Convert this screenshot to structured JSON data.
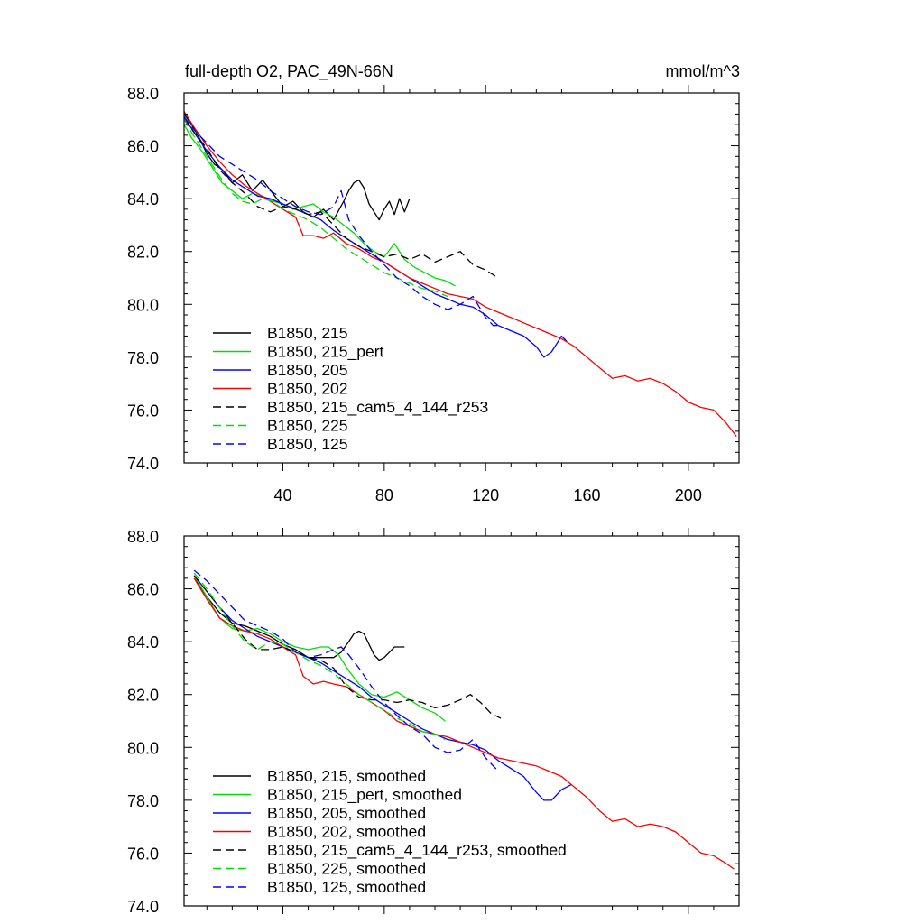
{
  "chart_data": [
    {
      "type": "line",
      "title": "full-depth O2, PAC_49N-66N",
      "units": "mmol/m^3",
      "xlabel": "",
      "ylabel": "",
      "xlim": [
        1,
        220
      ],
      "ylim": [
        74.0,
        88.0
      ],
      "xticks": [
        40,
        80,
        120,
        160,
        200
      ],
      "xtick_labels": [
        "40",
        "80",
        "120",
        "160",
        "200"
      ],
      "yticks": [
        74.0,
        76.0,
        78.0,
        80.0,
        82.0,
        84.0,
        86.0,
        88.0
      ],
      "ytick_labels": [
        "74.0",
        "76.0",
        "78.0",
        "80.0",
        "82.0",
        "84.0",
        "86.0",
        "88.0"
      ],
      "legend_position": "bottom-left",
      "grid": false,
      "series": [
        {
          "name": "B1850, 215",
          "color": "#000000",
          "dash": "solid",
          "x": [
            1,
            4,
            7,
            10,
            13,
            16,
            20,
            24,
            28,
            32,
            36,
            40,
            44,
            48,
            52,
            56,
            60,
            64,
            66,
            68,
            70,
            72,
            74,
            76,
            78,
            80,
            82,
            84,
            86,
            88,
            90
          ],
          "y": [
            87.2,
            86.8,
            86.3,
            85.7,
            85.3,
            85.1,
            84.6,
            84.9,
            84.3,
            84.7,
            84.2,
            83.7,
            83.9,
            83.5,
            83.3,
            83.6,
            83.2,
            83.9,
            84.3,
            84.6,
            84.7,
            84.4,
            83.8,
            83.5,
            83.2,
            83.6,
            83.9,
            83.4,
            84.0,
            83.5,
            84.0
          ]
        },
        {
          "name": "B1850, 215_pert",
          "color": "#00e000",
          "dash": "solid",
          "x": [
            1,
            4,
            8,
            12,
            16,
            20,
            24,
            28,
            32,
            36,
            40,
            44,
            48,
            52,
            56,
            60,
            64,
            68,
            72,
            76,
            80,
            84,
            88,
            92,
            96,
            100,
            104,
            108
          ],
          "y": [
            86.8,
            86.3,
            85.8,
            85.2,
            84.6,
            84.3,
            84.0,
            84.2,
            84.1,
            83.9,
            83.8,
            83.6,
            83.7,
            83.8,
            83.5,
            83.3,
            83.0,
            82.7,
            82.3,
            82.0,
            81.8,
            82.3,
            81.7,
            81.4,
            81.2,
            81.0,
            80.9,
            80.7
          ]
        },
        {
          "name": "B1850, 205",
          "color": "#0000ff",
          "dash": "solid",
          "x": [
            1,
            5,
            10,
            15,
            20,
            25,
            30,
            35,
            40,
            45,
            50,
            55,
            60,
            65,
            70,
            75,
            80,
            85,
            90,
            95,
            100,
            105,
            110,
            115,
            120,
            125,
            130,
            135,
            140,
            143,
            146,
            148,
            150,
            152
          ],
          "y": [
            87.1,
            86.5,
            85.8,
            85.2,
            84.7,
            84.4,
            84.1,
            84.0,
            83.8,
            83.6,
            83.4,
            83.2,
            82.8,
            82.5,
            82.2,
            81.9,
            81.6,
            81.3,
            81.0,
            80.7,
            80.4,
            80.2,
            80.0,
            79.9,
            79.6,
            79.2,
            79.0,
            78.8,
            78.4,
            78.0,
            78.2,
            78.5,
            78.8,
            78.6
          ]
        },
        {
          "name": "B1850, 202",
          "color": "#ff0000",
          "dash": "solid",
          "x": [
            1,
            5,
            10,
            15,
            20,
            25,
            30,
            35,
            40,
            45,
            48,
            52,
            56,
            60,
            65,
            70,
            75,
            80,
            85,
            90,
            95,
            100,
            105,
            110,
            115,
            120,
            125,
            130,
            135,
            140,
            145,
            150,
            155,
            160,
            165,
            170,
            175,
            180,
            185,
            190,
            195,
            200,
            205,
            210,
            215,
            219
          ],
          "y": [
            87.3,
            86.7,
            86.0,
            85.4,
            84.9,
            84.5,
            84.2,
            83.9,
            83.6,
            83.3,
            82.6,
            82.6,
            82.5,
            82.7,
            82.3,
            82.1,
            81.8,
            81.6,
            81.3,
            81.0,
            80.8,
            80.6,
            80.4,
            80.3,
            80.2,
            79.9,
            79.7,
            79.5,
            79.3,
            79.1,
            78.9,
            78.7,
            78.4,
            78.0,
            77.6,
            77.2,
            77.3,
            77.1,
            77.2,
            77.0,
            76.7,
            76.3,
            76.1,
            76.0,
            75.5,
            75.0
          ]
        },
        {
          "name": "B1850, 215_cam5_4_144_r253",
          "color": "#000000",
          "dash": "dash",
          "x": [
            1,
            5,
            10,
            15,
            20,
            25,
            30,
            35,
            40,
            45,
            50,
            55,
            60,
            65,
            70,
            75,
            80,
            85,
            90,
            95,
            100,
            105,
            110,
            115,
            120,
            125
          ],
          "y": [
            87.0,
            86.5,
            85.9,
            85.1,
            84.6,
            84.2,
            83.7,
            83.5,
            83.7,
            83.6,
            83.4,
            83.5,
            83.0,
            82.5,
            82.2,
            82.0,
            81.8,
            81.9,
            81.7,
            81.9,
            81.6,
            81.8,
            82.0,
            81.5,
            81.3,
            81.0
          ]
        },
        {
          "name": "B1850, 225",
          "color": "#00e000",
          "dash": "dash",
          "x": [
            1,
            4,
            8,
            12,
            16,
            20,
            24,
            28,
            32,
            36,
            40,
            45,
            50,
            55,
            60,
            65,
            70,
            75,
            80,
            85,
            90,
            95,
            100,
            105
          ],
          "y": [
            87.0,
            86.5,
            85.9,
            85.3,
            84.7,
            84.2,
            83.9,
            83.8,
            84.0,
            83.9,
            83.6,
            83.4,
            83.2,
            82.9,
            82.5,
            82.1,
            81.8,
            81.5,
            81.2,
            81.0,
            80.8,
            80.6,
            80.5,
            80.3
          ]
        },
        {
          "name": "B1850, 125",
          "color": "#0000ff",
          "dash": "dash",
          "x": [
            1,
            5,
            10,
            15,
            20,
            25,
            30,
            35,
            40,
            45,
            50,
            55,
            60,
            63,
            66,
            70,
            75,
            80,
            85,
            90,
            95,
            100,
            105,
            110,
            115,
            120,
            123,
            126
          ],
          "y": [
            87.1,
            86.6,
            86.1,
            85.6,
            85.3,
            85.0,
            84.7,
            84.3,
            84.0,
            83.7,
            83.5,
            83.4,
            83.7,
            84.3,
            83.2,
            82.6,
            82.0,
            81.5,
            81.0,
            80.7,
            80.3,
            80.0,
            79.8,
            80.0,
            80.3,
            79.5,
            79.2,
            79.2
          ]
        }
      ]
    },
    {
      "type": "line",
      "title": "",
      "xlabel": "",
      "ylabel": "",
      "xlim": [
        1,
        220
      ],
      "ylim": [
        74.0,
        88.0
      ],
      "xticks": [
        40,
        80,
        120,
        160,
        200
      ],
      "xtick_labels": [],
      "yticks": [
        74.0,
        76.0,
        78.0,
        80.0,
        82.0,
        84.0,
        86.0,
        88.0
      ],
      "ytick_labels": [
        "74.0",
        "76.0",
        "78.0",
        "80.0",
        "82.0",
        "84.0",
        "86.0",
        "88.0"
      ],
      "legend_position": "bottom-left",
      "grid": false,
      "series": [
        {
          "name": "B1850, 215, smoothed",
          "color": "#000000",
          "dash": "solid",
          "x": [
            5,
            10,
            15,
            20,
            25,
            30,
            35,
            40,
            45,
            50,
            55,
            60,
            63,
            66,
            68,
            70,
            72,
            74,
            76,
            78,
            80,
            82,
            84,
            86,
            88
          ],
          "y": [
            86.4,
            85.7,
            85.1,
            84.7,
            84.6,
            84.4,
            84.2,
            83.9,
            83.7,
            83.4,
            83.4,
            83.4,
            83.6,
            84.0,
            84.3,
            84.4,
            84.3,
            83.9,
            83.5,
            83.3,
            83.4,
            83.6,
            83.8,
            83.8,
            83.8
          ]
        },
        {
          "name": "B1850, 215_pert, smoothed",
          "color": "#00e000",
          "dash": "solid",
          "x": [
            5,
            10,
            15,
            20,
            25,
            30,
            35,
            40,
            45,
            50,
            55,
            58,
            62,
            66,
            70,
            75,
            80,
            85,
            90,
            95,
            100,
            104
          ],
          "y": [
            86.5,
            85.7,
            84.9,
            84.5,
            84.4,
            84.5,
            84.3,
            84.0,
            83.8,
            83.7,
            83.8,
            83.8,
            83.5,
            82.9,
            82.4,
            82.0,
            81.9,
            82.1,
            81.8,
            81.5,
            81.3,
            81.0
          ]
        },
        {
          "name": "B1850, 205, smoothed",
          "color": "#0000ff",
          "dash": "solid",
          "x": [
            5,
            10,
            15,
            20,
            25,
            30,
            35,
            40,
            45,
            50,
            55,
            60,
            65,
            70,
            75,
            80,
            85,
            90,
            95,
            100,
            105,
            110,
            115,
            120,
            125,
            130,
            135,
            140,
            143,
            146,
            150,
            154
          ],
          "y": [
            86.5,
            85.9,
            85.3,
            84.8,
            84.5,
            84.2,
            84.0,
            83.8,
            83.6,
            83.4,
            83.2,
            82.9,
            82.6,
            82.3,
            81.9,
            81.6,
            81.3,
            81.0,
            80.7,
            80.5,
            80.3,
            80.2,
            80.1,
            79.9,
            79.5,
            79.2,
            78.9,
            78.3,
            78.0,
            78.0,
            78.4,
            78.6
          ]
        },
        {
          "name": "B1850, 202, smoothed",
          "color": "#ff0000",
          "dash": "solid",
          "x": [
            5,
            10,
            15,
            20,
            25,
            30,
            35,
            40,
            45,
            48,
            52,
            56,
            60,
            65,
            70,
            75,
            80,
            85,
            90,
            95,
            100,
            105,
            110,
            115,
            120,
            125,
            130,
            135,
            140,
            145,
            150,
            155,
            160,
            165,
            170,
            175,
            180,
            185,
            190,
            195,
            200,
            205,
            210,
            215,
            218
          ],
          "y": [
            86.4,
            85.6,
            84.9,
            84.6,
            84.4,
            84.3,
            84.1,
            83.8,
            83.5,
            82.7,
            82.4,
            82.5,
            82.4,
            82.3,
            82.0,
            81.7,
            81.4,
            81.0,
            80.8,
            80.6,
            80.5,
            80.4,
            80.2,
            80.0,
            79.8,
            79.6,
            79.5,
            79.4,
            79.3,
            79.1,
            78.9,
            78.5,
            78.1,
            77.6,
            77.2,
            77.3,
            77.0,
            77.1,
            77.0,
            76.8,
            76.4,
            76.0,
            75.9,
            75.6,
            75.4
          ]
        },
        {
          "name": "B1850, 215_cam5_4_144_r253, smoothed",
          "color": "#000000",
          "dash": "dash",
          "x": [
            5,
            10,
            15,
            20,
            25,
            30,
            35,
            40,
            45,
            50,
            55,
            60,
            65,
            70,
            75,
            80,
            85,
            90,
            95,
            100,
            105,
            110,
            114,
            118,
            122,
            126
          ],
          "y": [
            86.5,
            85.9,
            85.3,
            84.7,
            84.1,
            83.7,
            83.7,
            83.8,
            83.6,
            83.4,
            83.3,
            83.0,
            82.3,
            81.9,
            81.8,
            81.8,
            81.7,
            81.8,
            81.7,
            81.5,
            81.6,
            81.8,
            82.0,
            81.7,
            81.3,
            81.1
          ]
        },
        {
          "name": "B1850, 225, smoothed",
          "color": "#00e000",
          "dash": "dash",
          "x": [
            5,
            10,
            15,
            20,
            25,
            30,
            35,
            40,
            45,
            50,
            55,
            60,
            65,
            70,
            75,
            80,
            85,
            90,
            95,
            100,
            104
          ],
          "y": [
            86.6,
            86.0,
            85.3,
            84.6,
            84.0,
            83.7,
            84.0,
            83.9,
            83.6,
            83.3,
            83.1,
            82.8,
            82.4,
            82.0,
            81.7,
            81.4,
            81.1,
            80.9,
            80.6,
            80.5,
            80.3
          ]
        },
        {
          "name": "B1850, 125, smoothed",
          "color": "#0000ff",
          "dash": "dash",
          "x": [
            5,
            10,
            15,
            20,
            25,
            30,
            35,
            40,
            45,
            50,
            55,
            60,
            63,
            66,
            70,
            75,
            80,
            85,
            90,
            95,
            100,
            105,
            110,
            115,
            120,
            125
          ],
          "y": [
            86.7,
            86.3,
            85.8,
            85.3,
            84.8,
            84.6,
            84.4,
            84.1,
            83.6,
            83.4,
            83.5,
            83.7,
            83.8,
            83.5,
            83.0,
            82.3,
            81.7,
            81.2,
            80.8,
            80.5,
            80.0,
            79.8,
            79.9,
            80.3,
            79.6,
            79.1
          ]
        }
      ]
    }
  ]
}
